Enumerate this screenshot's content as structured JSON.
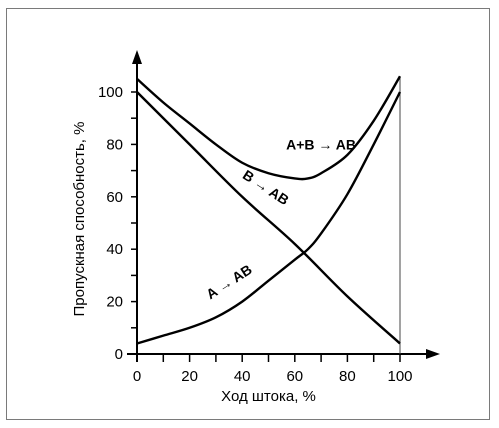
{
  "chart_data": {
    "type": "line",
    "xlabel": "Ход штока, %",
    "ylabel": "Пропускная способность, %",
    "xlim": [
      0,
      100
    ],
    "ylim": [
      0,
      105
    ],
    "x_ticks": [
      0,
      20,
      40,
      60,
      80,
      100
    ],
    "y_ticks": [
      0,
      20,
      40,
      60,
      80,
      100
    ],
    "grid": false,
    "series": [
      {
        "name": "A+B → AB",
        "x": [
          0,
          10,
          20,
          30,
          40,
          50,
          60,
          65,
          70,
          80,
          90,
          100
        ],
        "y": [
          105,
          96,
          88,
          80,
          73,
          69,
          67,
          67,
          69,
          76,
          89,
          106
        ]
      },
      {
        "name": "B → AB",
        "x": [
          0,
          20,
          40,
          60,
          80,
          100
        ],
        "y": [
          100,
          80,
          60,
          42,
          22,
          4
        ]
      },
      {
        "name": "A → AB",
        "x": [
          0,
          10,
          20,
          30,
          40,
          50,
          60,
          65,
          70,
          80,
          90,
          100
        ],
        "y": [
          4,
          7,
          10,
          14,
          20,
          28,
          36,
          40,
          46,
          61,
          80,
          100
        ]
      }
    ],
    "annotations": [
      {
        "text": "A+B → AB",
        "x": 70,
        "y": 78
      },
      {
        "text": "B → AB",
        "x": 48,
        "y": 62
      },
      {
        "text": "A → AB",
        "x": 36,
        "y": 26
      }
    ]
  }
}
